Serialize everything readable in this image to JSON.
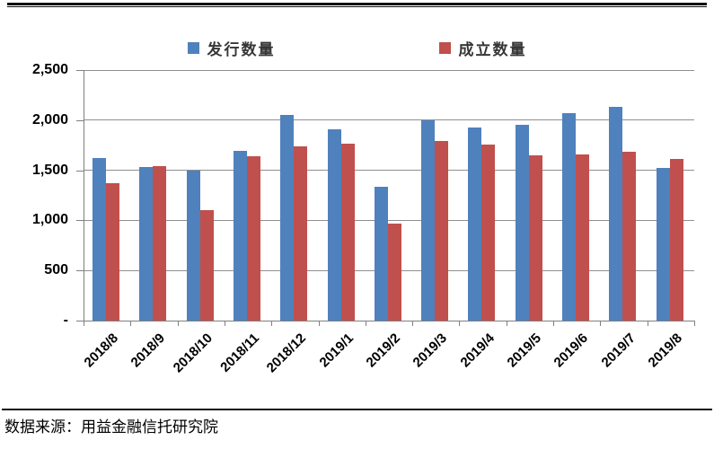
{
  "chart_data": {
    "type": "bar",
    "categories": [
      "2018/8",
      "2018/9",
      "2018/10",
      "2018/11",
      "2018/12",
      "2019/1",
      "2019/2",
      "2019/3",
      "2019/4",
      "2019/5",
      "2019/6",
      "2019/7",
      "2019/8"
    ],
    "series": [
      {
        "name": "发行数量",
        "color": "#4F81BD",
        "values": [
          1620,
          1535,
          1495,
          1690,
          2050,
          1910,
          1335,
          2000,
          1930,
          1955,
          2070,
          2130,
          1525
        ]
      },
      {
        "name": "成立数量",
        "color": "#C0504D",
        "values": [
          1370,
          1545,
          1100,
          1640,
          1740,
          1765,
          965,
          1790,
          1755,
          1650,
          1660,
          1685,
          1610
        ]
      }
    ],
    "title": "",
    "xlabel": "",
    "ylabel": "",
    "ylim": [
      0,
      2500
    ],
    "ytick_step": 500,
    "ytick_labels": [
      "-",
      "500",
      "1,000",
      "1,500",
      "2,000",
      "2,500"
    ],
    "grid": true,
    "legend_position": "top"
  },
  "footer": {
    "source_label": "数据来源：用益金融信托研究院"
  },
  "colors": {
    "series_blue": "#4F81BD",
    "series_red": "#C0504D",
    "grid": "#8F8F8F",
    "axis": "#7F7F7F",
    "rule": "#111111",
    "text": "#000000"
  }
}
